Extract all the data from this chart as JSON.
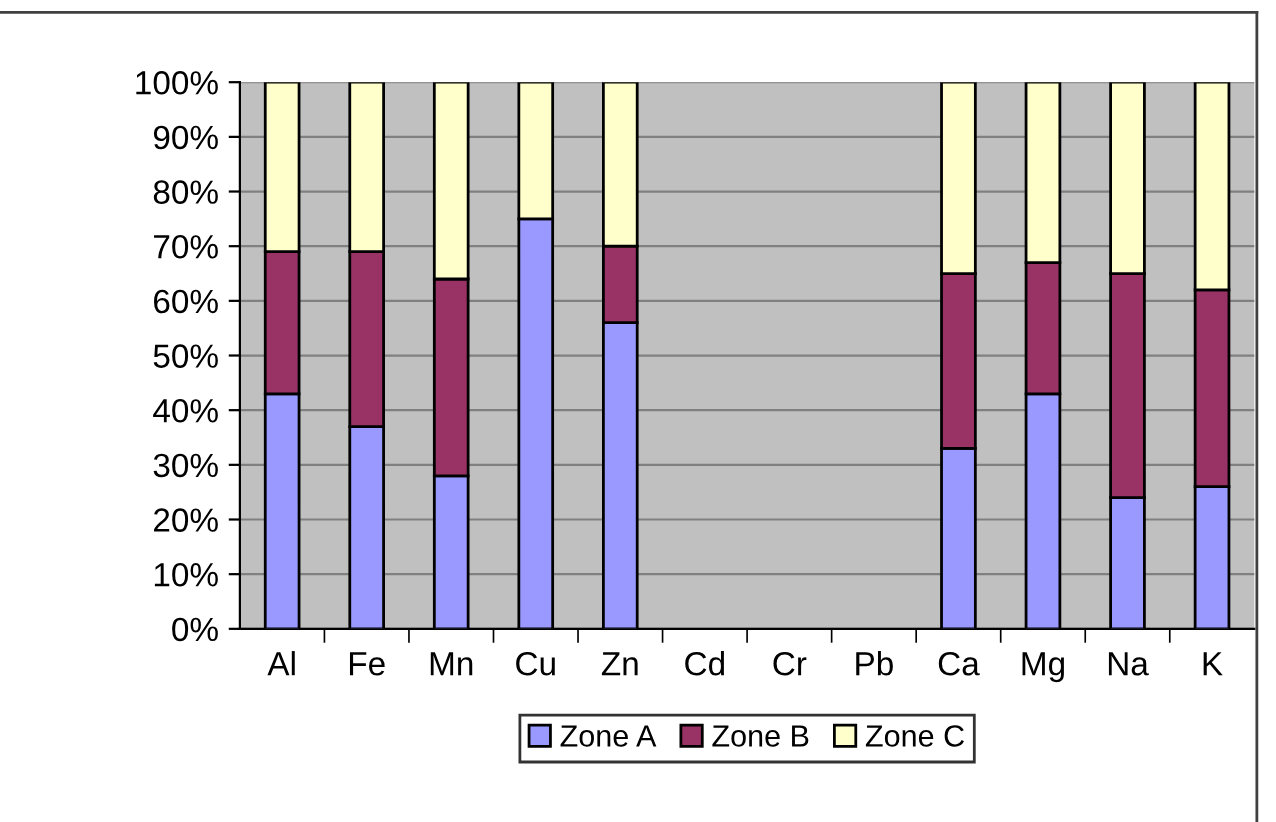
{
  "chart_data": {
    "type": "bar",
    "stacked": true,
    "categories": [
      "Al",
      "Fe",
      "Mn",
      "Cu",
      "Zn",
      "Cd",
      "Cr",
      "Pb",
      "Ca",
      "Mg",
      "Na",
      "K"
    ],
    "series": [
      {
        "name": "Zone A",
        "color": "#9999ff",
        "values": [
          43,
          37,
          28,
          75,
          56,
          null,
          null,
          null,
          33,
          43,
          24,
          26
        ]
      },
      {
        "name": "Zone B",
        "color": "#993366",
        "values": [
          26,
          32,
          36,
          0,
          14,
          null,
          null,
          null,
          32,
          24,
          41,
          36
        ]
      },
      {
        "name": "Zone C",
        "color": "#ffffcc",
        "values": [
          31,
          31,
          36,
          25,
          30,
          null,
          null,
          null,
          35,
          33,
          35,
          38
        ]
      }
    ],
    "ylim": [
      0,
      100
    ],
    "yticks": [
      {
        "value": 0,
        "label": "0%"
      },
      {
        "value": 10,
        "label": "10%"
      },
      {
        "value": 20,
        "label": "20%"
      },
      {
        "value": 30,
        "label": "30%"
      },
      {
        "value": 40,
        "label": "40%"
      },
      {
        "value": 50,
        "label": "50%"
      },
      {
        "value": 60,
        "label": "60%"
      },
      {
        "value": 70,
        "label": "70%"
      },
      {
        "value": 80,
        "label": "80%"
      },
      {
        "value": 90,
        "label": "90%"
      },
      {
        "value": 100,
        "label": "100%"
      }
    ],
    "grid": "y",
    "legend": "bottom"
  }
}
